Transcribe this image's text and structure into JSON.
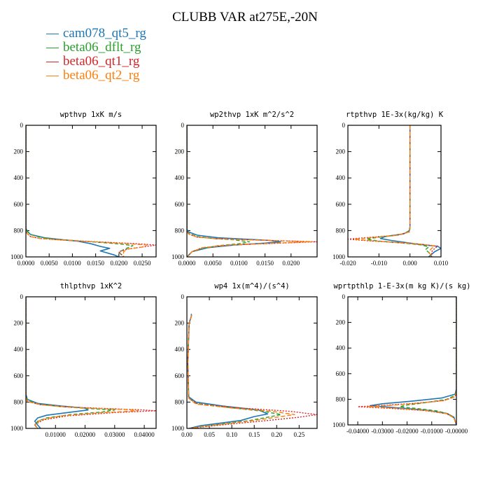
{
  "title": "CLUBB VAR at275E,-20N",
  "colors": {
    "cam078_qt5_rg": "#1f77b4",
    "beta06_dflt_rg": "#2ca02c",
    "beta06_qt1_rg": "#d62728",
    "beta06_qt2_rg": "#ff7f0e"
  },
  "legend": [
    {
      "label": "cam078_qt5_rg",
      "color": "#1f77b4"
    },
    {
      "label": "beta06_dflt_rg",
      "color": "#2ca02c"
    },
    {
      "label": "beta06_qt1_rg",
      "color": "#d62728"
    },
    {
      "label": "beta06_qt2_rg",
      "color": "#ff7f0e"
    }
  ],
  "chart_data": [
    {
      "type": "line",
      "title": "wpthvp  1xK m/s",
      "ylim": [
        1000,
        0
      ],
      "yticks": [
        0,
        200,
        400,
        600,
        800,
        1000
      ],
      "xlim": [
        0,
        0.028
      ],
      "xticks": [
        0,
        0.005,
        0.01,
        0.015,
        0.02,
        0.025
      ],
      "xticklabels": [
        "0.0000",
        "0.0050",
        "0.0100",
        "0.0150",
        "0.0200",
        "0.0250"
      ],
      "series": [
        {
          "name": "cam078_qt5_rg",
          "x": [
            0,
            0,
            0.0002,
            0.001,
            0.004,
            0.008,
            0.011,
            0.014,
            0.016,
            0.018,
            0.017,
            0.016,
            0.017,
            0.018,
            0.019,
            0.02
          ],
          "y": [
            0,
            780,
            800,
            830,
            855,
            870,
            880,
            900,
            920,
            935,
            945,
            955,
            965,
            975,
            985,
            1000
          ]
        },
        {
          "name": "beta06_dflt_rg",
          "x": [
            0,
            0,
            0.0002,
            0.001,
            0.003,
            0.006,
            0.01,
            0.014,
            0.018,
            0.021,
            0.023,
            0.022,
            0.021,
            0.02,
            0.021
          ],
          "y": [
            0,
            790,
            805,
            830,
            850,
            865,
            875,
            885,
            895,
            905,
            915,
            930,
            945,
            965,
            1000
          ]
        },
        {
          "name": "beta06_qt1_rg",
          "x": [
            0,
            0,
            0.0002,
            0.001,
            0.003,
            0.007,
            0.012,
            0.018,
            0.024,
            0.028,
            0.025,
            0.022,
            0.02,
            0.021
          ],
          "y": [
            0,
            800,
            820,
            845,
            860,
            870,
            880,
            890,
            900,
            910,
            925,
            940,
            960,
            1000
          ]
        },
        {
          "name": "beta06_qt2_rg",
          "x": [
            0,
            0,
            0.0002,
            0.001,
            0.003,
            0.007,
            0.012,
            0.017,
            0.022,
            0.026,
            0.025,
            0.022,
            0.021,
            0.021
          ],
          "y": [
            0,
            800,
            820,
            845,
            860,
            870,
            880,
            890,
            900,
            910,
            925,
            940,
            960,
            1000
          ]
        }
      ]
    },
    {
      "type": "line",
      "title": "wp2thvp  1xK m^2/s^2",
      "ylim": [
        1000,
        0
      ],
      "yticks": [
        0,
        200,
        400,
        600,
        800,
        1000
      ],
      "xlim": [
        0,
        0.025
      ],
      "xticks": [
        0,
        0.005,
        0.01,
        0.015,
        0.02
      ],
      "xticklabels": [
        "0.0000",
        "0.0050",
        "0.0100",
        "0.0150",
        "0.0200"
      ],
      "series": [
        {
          "name": "cam078_qt5_rg",
          "x": [
            0,
            0,
            0.0003,
            0.002,
            0.006,
            0.011,
            0.016,
            0.018,
            0.015,
            0.009,
            0.004,
            0.001,
            0
          ],
          "y": [
            0,
            790,
            810,
            835,
            855,
            865,
            875,
            885,
            895,
            910,
            930,
            960,
            1000
          ]
        },
        {
          "name": "beta06_dflt_rg",
          "x": [
            0,
            0,
            0.0003,
            0.002,
            0.005,
            0.009,
            0.012,
            0.01,
            0.006,
            0.003,
            0.001,
            0
          ],
          "y": [
            0,
            800,
            820,
            845,
            860,
            870,
            885,
            900,
            915,
            935,
            960,
            1000
          ]
        },
        {
          "name": "beta06_qt1_rg",
          "x": [
            0,
            0,
            0.0003,
            0.002,
            0.006,
            0.012,
            0.019,
            0.025,
            0.018,
            0.008,
            0.003,
            0.001,
            0
          ],
          "y": [
            0,
            805,
            825,
            850,
            862,
            870,
            878,
            885,
            895,
            910,
            930,
            960,
            1000
          ]
        },
        {
          "name": "beta06_qt2_rg",
          "x": [
            0,
            0,
            0.0003,
            0.002,
            0.006,
            0.012,
            0.018,
            0.024,
            0.017,
            0.008,
            0.003,
            0.001,
            0
          ],
          "y": [
            0,
            805,
            825,
            850,
            862,
            870,
            878,
            885,
            895,
            910,
            930,
            960,
            1000
          ]
        }
      ]
    },
    {
      "type": "line",
      "title": "rtpthvp  1E-3x(kg/kg) K",
      "ylim": [
        1000,
        0
      ],
      "yticks": [
        0,
        200,
        400,
        600,
        800,
        1000
      ],
      "xlim": [
        -0.02,
        0.01
      ],
      "xticks": [
        -0.02,
        -0.01,
        0,
        0.01
      ],
      "xticklabels": [
        "-0.020",
        "-0.010",
        "0.000",
        "0.010"
      ],
      "series": [
        {
          "name": "cam078_qt5_rg",
          "x": [
            0,
            0,
            -0.0002,
            -0.002,
            -0.008,
            -0.0095,
            -0.006,
            0,
            0.005,
            0.009,
            0.01,
            0.008,
            0.006
          ],
          "y": [
            0,
            770,
            800,
            825,
            845,
            860,
            875,
            895,
            910,
            920,
            935,
            960,
            1000
          ]
        },
        {
          "name": "beta06_dflt_rg",
          "x": [
            0,
            0,
            -0.0002,
            -0.003,
            -0.01,
            -0.014,
            -0.01,
            -0.002,
            0.004,
            0.006,
            0.005,
            0.006,
            0.007
          ],
          "y": [
            0,
            780,
            805,
            830,
            850,
            865,
            880,
            895,
            910,
            925,
            945,
            965,
            1000
          ]
        },
        {
          "name": "beta06_qt1_rg",
          "x": [
            0,
            0,
            -0.0002,
            -0.004,
            -0.013,
            -0.02,
            -0.013,
            -0.003,
            0.004,
            0.009,
            0.008,
            0.007,
            0.007
          ],
          "y": [
            0,
            785,
            810,
            835,
            852,
            865,
            878,
            893,
            905,
            918,
            935,
            960,
            1000
          ]
        },
        {
          "name": "beta06_qt2_rg",
          "x": [
            0,
            0,
            -0.0002,
            -0.004,
            -0.012,
            -0.018,
            -0.012,
            -0.002,
            0.004,
            0.008,
            0.007,
            0.006,
            0.007
          ],
          "y": [
            0,
            785,
            810,
            835,
            852,
            865,
            878,
            893,
            905,
            918,
            935,
            960,
            1000
          ]
        }
      ]
    },
    {
      "type": "line",
      "title": "thlpthvp  1xK^2",
      "ylim": [
        1000,
        0
      ],
      "yticks": [
        0,
        200,
        400,
        600,
        800,
        1000
      ],
      "xlim": [
        0,
        0.044
      ],
      "xticks": [
        0.01,
        0.02,
        0.03,
        0.04
      ],
      "xticklabels": [
        "0.01000",
        "0.02000",
        "0.03000",
        "0.04000"
      ],
      "series": [
        {
          "name": "cam078_qt5_rg",
          "x": [
            0,
            0,
            0.0005,
            0.004,
            0.012,
            0.02,
            0.021,
            0.014,
            0.007,
            0.004,
            0.003,
            0.004,
            0.005
          ],
          "y": [
            0,
            740,
            780,
            810,
            830,
            845,
            860,
            880,
            900,
            920,
            945,
            975,
            1000
          ]
        },
        {
          "name": "beta06_dflt_rg",
          "x": [
            0,
            0,
            0.0005,
            0.004,
            0.012,
            0.022,
            0.03,
            0.026,
            0.015,
            0.007,
            0.004,
            0.003,
            0.004
          ],
          "y": [
            0,
            750,
            785,
            815,
            835,
            850,
            860,
            875,
            895,
            920,
            945,
            975,
            1000
          ]
        },
        {
          "name": "beta06_qt1_rg",
          "x": [
            0,
            0,
            0.0005,
            0.005,
            0.015,
            0.028,
            0.038,
            0.044,
            0.03,
            0.014,
            0.006,
            0.003,
            0.004
          ],
          "y": [
            0,
            760,
            795,
            820,
            838,
            850,
            858,
            866,
            880,
            905,
            935,
            970,
            1000
          ]
        },
        {
          "name": "beta06_qt2_rg",
          "x": [
            0,
            0,
            0.0005,
            0.005,
            0.014,
            0.026,
            0.035,
            0.038,
            0.026,
            0.012,
            0.005,
            0.003,
            0.004
          ],
          "y": [
            0,
            760,
            795,
            820,
            838,
            850,
            858,
            866,
            880,
            905,
            935,
            970,
            1000
          ]
        }
      ]
    },
    {
      "type": "line",
      "title": "wp4  1x(m^4)/(s^4)",
      "ylim": [
        1000,
        0
      ],
      "yticks": [
        0,
        200,
        400,
        600,
        800,
        1000
      ],
      "xlim": [
        0,
        0.29
      ],
      "xticks": [
        0,
        0.05,
        0.1,
        0.15,
        0.2,
        0.25
      ],
      "xticklabels": [
        "0.00",
        "0.05",
        "0.10",
        "0.15",
        "0.20",
        "0.25"
      ],
      "series": [
        {
          "name": "cam078_qt5_rg",
          "x": [
            0.01,
            0.01,
            0.005,
            0.002,
            0.004,
            0.02,
            0.08,
            0.16,
            0.18,
            0.15,
            0.12,
            0.03,
            0.005
          ],
          "y": [
            130,
            145,
            200,
            500,
            760,
            800,
            830,
            860,
            890,
            910,
            940,
            980,
            1000
          ]
        },
        {
          "name": "beta06_dflt_rg",
          "x": [
            0.01,
            0.01,
            0.005,
            0.002,
            0.004,
            0.02,
            0.09,
            0.17,
            0.21,
            0.18,
            0.14,
            0.05,
            0.005
          ],
          "y": [
            140,
            150,
            200,
            500,
            770,
            810,
            840,
            870,
            895,
            915,
            940,
            980,
            1000
          ]
        },
        {
          "name": "beta06_qt1_rg",
          "x": [
            0.01,
            0.01,
            0.005,
            0.002,
            0.004,
            0.025,
            0.12,
            0.23,
            0.29,
            0.25,
            0.18,
            0.06,
            0.005
          ],
          "y": [
            140,
            150,
            200,
            500,
            770,
            815,
            845,
            870,
            895,
            915,
            940,
            980,
            1000
          ]
        },
        {
          "name": "beta06_qt2_rg",
          "x": [
            0.01,
            0.01,
            0.005,
            0.002,
            0.004,
            0.02,
            0.1,
            0.19,
            0.24,
            0.2,
            0.15,
            0.05,
            0.005
          ],
          "y": [
            140,
            150,
            200,
            500,
            770,
            815,
            845,
            870,
            895,
            915,
            940,
            980,
            1000
          ]
        }
      ]
    },
    {
      "type": "line",
      "title": "wprtpthlp  1-E-3x(m kg K)/(s kg)",
      "ylim": [
        1000,
        0
      ],
      "yticks": [
        0,
        200,
        400,
        600,
        800,
        1000
      ],
      "xlim": [
        -0.044,
        0
      ],
      "xticks": [
        -0.04,
        -0.03,
        -0.02,
        -0.01,
        0
      ],
      "xticklabels": [
        "-0.04000",
        "-0.03000",
        "-0.02000",
        "-0.01000",
        "-0.00000"
      ],
      "series": [
        {
          "name": "cam078_qt5_rg",
          "x": [
            0,
            0,
            -0.0005,
            -0.006,
            -0.018,
            -0.03,
            -0.035,
            -0.025,
            -0.012,
            -0.004,
            -0.001,
            0
          ],
          "y": [
            0,
            720,
            760,
            790,
            815,
            835,
            850,
            865,
            885,
            910,
            940,
            1000
          ]
        },
        {
          "name": "beta06_dflt_rg",
          "x": [
            0,
            0,
            -0.0005,
            -0.004,
            -0.012,
            -0.02,
            -0.023,
            -0.016,
            -0.008,
            -0.003,
            -0.001,
            0
          ],
          "y": [
            0,
            730,
            770,
            800,
            825,
            845,
            858,
            872,
            890,
            915,
            945,
            1000
          ]
        },
        {
          "name": "beta06_qt1_rg",
          "x": [
            0,
            0,
            -0.0005,
            -0.005,
            -0.016,
            -0.03,
            -0.04,
            -0.028,
            -0.013,
            -0.004,
            -0.001,
            0
          ],
          "y": [
            0,
            740,
            780,
            810,
            830,
            848,
            858,
            870,
            888,
            912,
            945,
            1000
          ]
        },
        {
          "name": "beta06_qt2_rg",
          "x": [
            0,
            0,
            -0.0005,
            -0.005,
            -0.015,
            -0.027,
            -0.036,
            -0.025,
            -0.012,
            -0.004,
            -0.001,
            0
          ],
          "y": [
            0,
            740,
            780,
            810,
            830,
            848,
            858,
            870,
            888,
            912,
            945,
            1000
          ]
        }
      ]
    }
  ]
}
